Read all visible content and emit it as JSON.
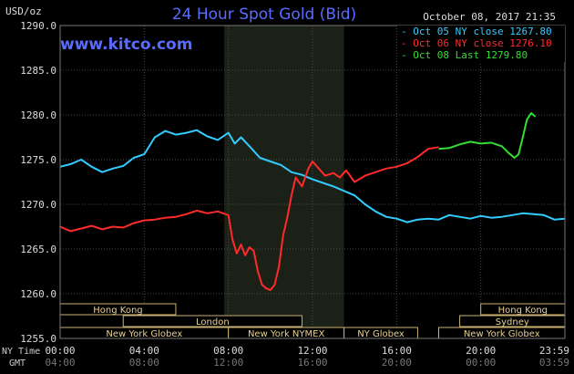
{
  "chart_data": {
    "type": "line",
    "title": "24 Hour Spot Gold (Bid)",
    "ylabel": "USD/oz",
    "watermark": "www.kitco.com",
    "timestamp": "October 08, 2017 21:35",
    "ylim": [
      1255.0,
      1290.0
    ],
    "yticks": [
      "1290.0",
      "1285.0",
      "1280.0",
      "1275.0",
      "1270.0",
      "1265.0",
      "1260.0",
      "1255.0"
    ],
    "xlim": [
      0,
      24
    ],
    "ny_time_label": "NY Time",
    "gmt_label": "GMT",
    "ny_ticks": [
      "00:00",
      "04:00",
      "08:00",
      "12:00",
      "16:00",
      "20:00",
      "23:59"
    ],
    "gmt_ticks": [
      "04:00",
      "08:00",
      "12:00",
      "16:00",
      "20:00",
      "00:00",
      "03:59"
    ],
    "shaded_period": [
      7.8,
      13.5
    ],
    "legend": {
      "placement": "top-right",
      "items": [
        {
          "label": "Oct 05 NY close 1267.80",
          "color": "#33ccff"
        },
        {
          "label": "Oct 06 NY close 1276.10",
          "color": "#ff2a2a"
        },
        {
          "label": "Oct 08 Last 1279.80",
          "color": "#33dd33"
        }
      ]
    },
    "series": [
      {
        "name": "Oct 05 NY close 1267.80",
        "color": "#33ccff",
        "x": [
          0,
          0.5,
          1,
          1.5,
          2,
          2.5,
          3,
          3.5,
          4,
          4.5,
          5,
          5.5,
          6,
          6.5,
          7,
          7.5,
          8,
          8.3,
          8.6,
          9,
          9.5,
          10,
          10.5,
          11,
          11.5,
          12,
          12.5,
          13,
          13.5,
          14,
          14.5,
          15,
          15.5,
          16,
          16.5,
          17,
          17.5,
          18,
          18.5,
          19,
          19.5,
          20,
          20.5,
          21,
          21.5,
          22,
          22.5,
          23,
          23.5,
          24
        ],
        "y": [
          1274.2,
          1274.5,
          1275.0,
          1274.2,
          1273.6,
          1274.0,
          1274.3,
          1275.2,
          1275.6,
          1277.5,
          1278.2,
          1277.8,
          1278.0,
          1278.3,
          1277.6,
          1277.2,
          1278.0,
          1276.8,
          1277.5,
          1276.5,
          1275.2,
          1274.8,
          1274.4,
          1273.6,
          1273.3,
          1272.8,
          1272.4,
          1272.0,
          1271.5,
          1271.0,
          1270.0,
          1269.2,
          1268.6,
          1268.4,
          1268.0,
          1268.3,
          1268.4,
          1268.3,
          1268.8,
          1268.6,
          1268.4,
          1268.7,
          1268.5,
          1268.6,
          1268.8,
          1269.0,
          1268.9,
          1268.8,
          1268.3,
          1268.4
        ]
      },
      {
        "name": "Oct 06 NY close 1276.10",
        "color": "#ff2a2a",
        "x": [
          0,
          0.5,
          1,
          1.5,
          2,
          2.5,
          3,
          3.5,
          4,
          4.5,
          5,
          5.5,
          6,
          6.5,
          7,
          7.5,
          8,
          8.2,
          8.4,
          8.6,
          8.8,
          9,
          9.2,
          9.4,
          9.6,
          9.8,
          10,
          10.2,
          10.4,
          10.6,
          10.8,
          11,
          11.2,
          11.5,
          11.8,
          12,
          12.3,
          12.6,
          13,
          13.3,
          13.6,
          14,
          14.5,
          15,
          15.5,
          16,
          16.5,
          17,
          17.5,
          18
        ],
        "y": [
          1267.5,
          1267.0,
          1267.3,
          1267.6,
          1267.2,
          1267.5,
          1267.4,
          1267.9,
          1268.2,
          1268.3,
          1268.5,
          1268.6,
          1268.9,
          1269.3,
          1269.0,
          1269.2,
          1268.8,
          1266.0,
          1264.5,
          1265.5,
          1264.3,
          1265.2,
          1264.8,
          1262.5,
          1261.0,
          1260.6,
          1260.4,
          1261.0,
          1263.0,
          1266.5,
          1268.5,
          1271.0,
          1273.0,
          1272.0,
          1274.0,
          1274.8,
          1274.0,
          1273.2,
          1273.5,
          1273.0,
          1273.8,
          1272.5,
          1273.2,
          1273.6,
          1274.0,
          1274.2,
          1274.6,
          1275.3,
          1276.2,
          1276.4
        ]
      },
      {
        "name": "Oct 08 Last 1279.80",
        "color": "#33dd33",
        "x": [
          18,
          18.5,
          19,
          19.5,
          20,
          20.5,
          21,
          21.3,
          21.6,
          21.8,
          22,
          22.2,
          22.4,
          22.6
        ],
        "y": [
          1276.2,
          1276.3,
          1276.7,
          1277.0,
          1276.8,
          1276.9,
          1276.5,
          1275.8,
          1275.2,
          1275.6,
          1277.5,
          1279.5,
          1280.2,
          1279.8
        ]
      }
    ],
    "sessions": [
      {
        "label": "Hong Kong",
        "start": 0,
        "end": 5.5,
        "row": 1
      },
      {
        "label": "London",
        "start": 3.0,
        "end": 11.5,
        "row": 2
      },
      {
        "label": "New York Globex",
        "start": 0,
        "end": 8.0,
        "row": 3
      },
      {
        "label": "New York NYMEX",
        "start": 8.0,
        "end": 13.5,
        "row": 3
      },
      {
        "label": "NY Globex",
        "start": 13.5,
        "end": 17.0,
        "row": 3
      },
      {
        "label": "Hong Kong",
        "start": 20.0,
        "end": 24.0,
        "row": 1
      },
      {
        "label": "Sydney",
        "start": 19.0,
        "end": 24.0,
        "row": 2
      },
      {
        "label": "New York Globex",
        "start": 18.0,
        "end": 24.0,
        "row": 3
      }
    ]
  }
}
